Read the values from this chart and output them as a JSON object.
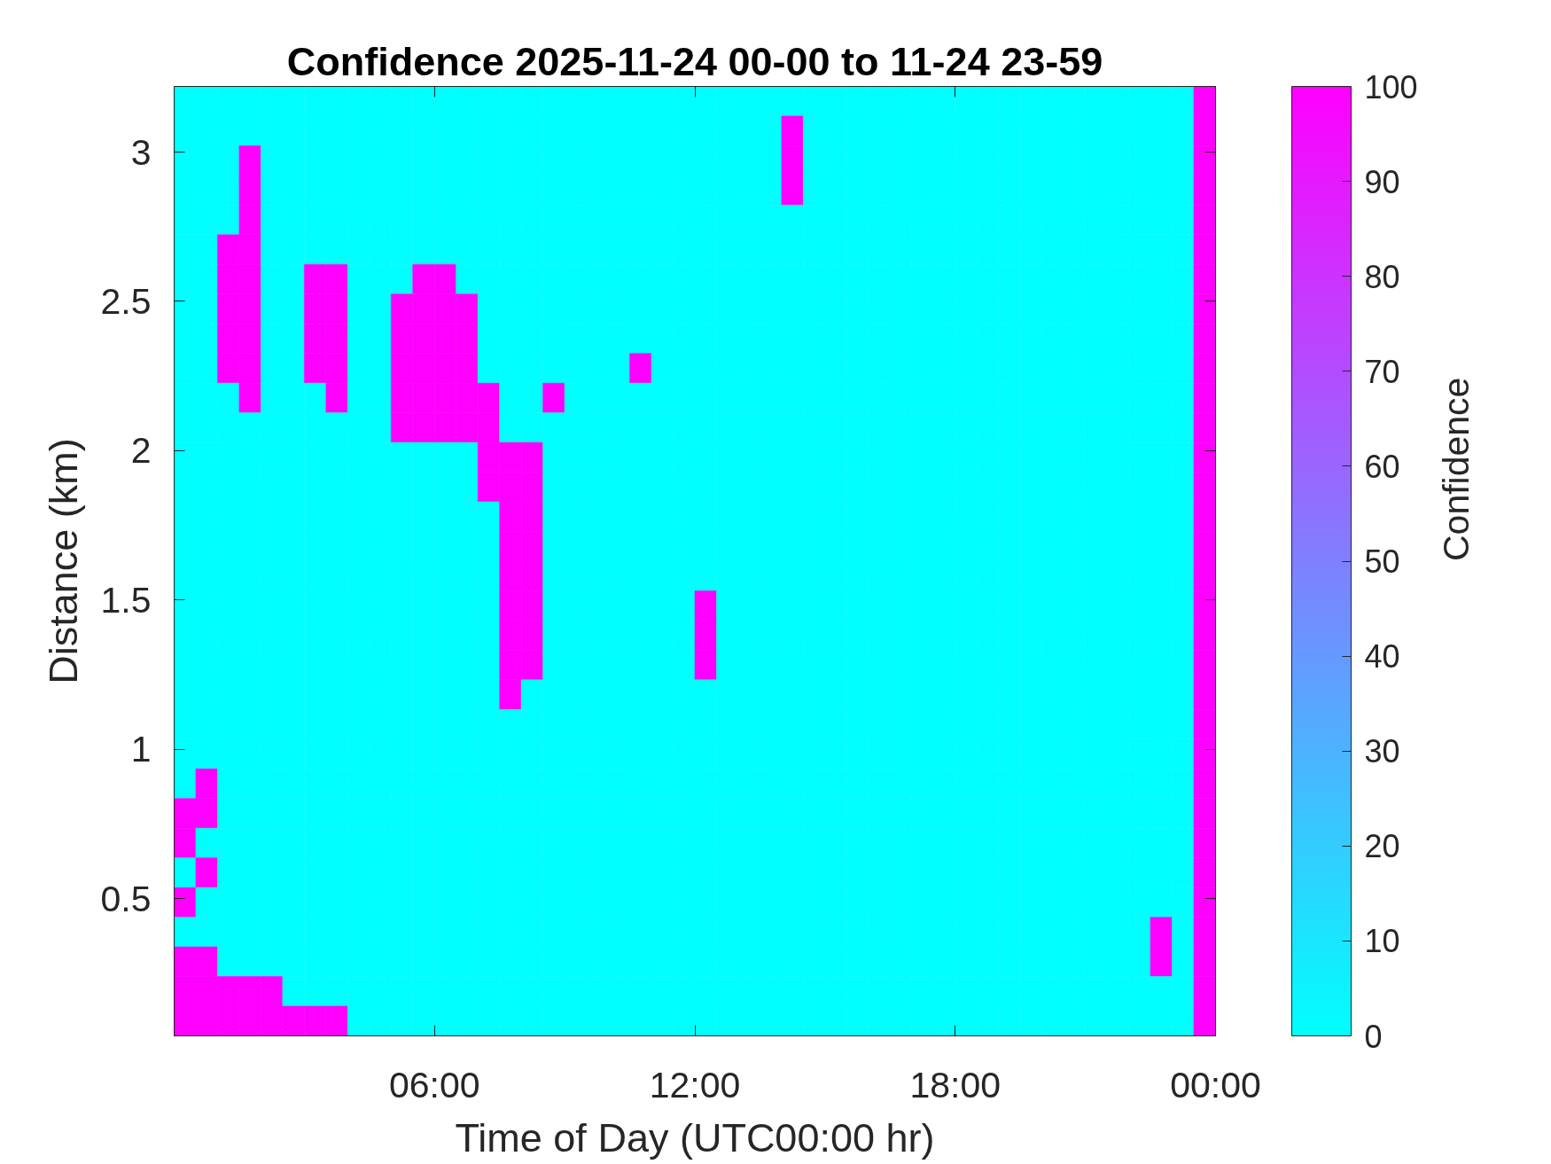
{
  "chart_data": {
    "type": "heatmap",
    "title": "Confidence 2025-11-24 00-00 to 11-24 23-59",
    "xlabel": "Time of Day (UTC00:00 hr)",
    "ylabel": "Distance (km)",
    "clabel": "Confidence",
    "x": [
      0.25,
      0.75,
      1.25,
      1.75,
      2.25,
      2.75,
      3.25,
      3.75,
      4.25,
      4.75,
      5.25,
      5.75,
      6.25,
      6.75,
      7.25,
      7.75,
      8.25,
      8.75,
      9.25,
      9.75,
      10.25,
      10.75,
      11.25,
      11.75,
      12.25,
      12.75,
      13.25,
      13.75,
      14.25,
      14.75,
      15.25,
      15.75,
      16.25,
      16.75,
      17.25,
      17.75,
      18.25,
      18.75,
      19.25,
      19.75,
      20.25,
      20.75,
      21.25,
      21.75,
      22.25,
      22.75,
      23.25,
      23.75
    ],
    "xlim": [
      0,
      24
    ],
    "xticks": [
      {
        "value": 6,
        "label": "06:00"
      },
      {
        "value": 12,
        "label": "12:00"
      },
      {
        "value": 18,
        "label": "18:00"
      },
      {
        "value": 24,
        "label": "00:00"
      }
    ],
    "ylim": [
      0.04,
      3.22
    ],
    "yticks": [
      0.5,
      1,
      1.5,
      2,
      2.5,
      3
    ],
    "clim": [
      0,
      100
    ],
    "cticks": [
      0,
      10,
      20,
      30,
      40,
      50,
      60,
      70,
      80,
      90,
      100
    ],
    "cells": [
      [
        0,
        0,
        0,
        0,
        0,
        0,
        0,
        0,
        0,
        0,
        0,
        0,
        0,
        0,
        0,
        0,
        0,
        0,
        0,
        0,
        0,
        0,
        0,
        0,
        0,
        0,
        0,
        0,
        0,
        0,
        0,
        0,
        0,
        0,
        0,
        0,
        0,
        0,
        0,
        0,
        0,
        0,
        0,
        0,
        0,
        0,
        0,
        100
      ],
      [
        0,
        0,
        0,
        0,
        0,
        0,
        0,
        0,
        0,
        0,
        0,
        0,
        0,
        0,
        0,
        0,
        0,
        0,
        0,
        0,
        0,
        0,
        0,
        0,
        0,
        0,
        0,
        0,
        100,
        0,
        0,
        0,
        0,
        0,
        0,
        0,
        0,
        0,
        0,
        0,
        0,
        0,
        0,
        0,
        0,
        0,
        0,
        100
      ],
      [
        0,
        0,
        0,
        100,
        0,
        0,
        0,
        0,
        0,
        0,
        0,
        0,
        0,
        0,
        0,
        0,
        0,
        0,
        0,
        0,
        0,
        0,
        0,
        0,
        0,
        0,
        0,
        0,
        100,
        0,
        0,
        0,
        0,
        0,
        0,
        0,
        0,
        0,
        0,
        0,
        0,
        0,
        0,
        0,
        0,
        0,
        0,
        100
      ],
      [
        0,
        0,
        0,
        100,
        0,
        0,
        0,
        0,
        0,
        0,
        0,
        0,
        0,
        0,
        0,
        0,
        0,
        0,
        0,
        0,
        0,
        0,
        0,
        0,
        0,
        0,
        0,
        0,
        100,
        0,
        0,
        0,
        0,
        0,
        0,
        0,
        0,
        0,
        0,
        0,
        0,
        0,
        0,
        0,
        0,
        0,
        0,
        100
      ],
      [
        0,
        0,
        0,
        100,
        0,
        0,
        0,
        0,
        0,
        0,
        0,
        0,
        0,
        0,
        0,
        0,
        0,
        0,
        0,
        0,
        0,
        0,
        0,
        0,
        0,
        0,
        0,
        0,
        0,
        0,
        0,
        0,
        0,
        0,
        0,
        0,
        0,
        0,
        0,
        0,
        0,
        0,
        0,
        0,
        0,
        0,
        0,
        100
      ],
      [
        0,
        0,
        100,
        100,
        0,
        0,
        0,
        0,
        0,
        0,
        0,
        0,
        0,
        0,
        0,
        0,
        0,
        0,
        0,
        0,
        0,
        0,
        0,
        0,
        0,
        0,
        0,
        0,
        0,
        0,
        0,
        0,
        0,
        0,
        0,
        0,
        0,
        0,
        0,
        0,
        0,
        0,
        0,
        0,
        0,
        0,
        0,
        100
      ],
      [
        0,
        0,
        100,
        100,
        0,
        0,
        100,
        100,
        0,
        0,
        0,
        100,
        100,
        0,
        0,
        0,
        0,
        0,
        0,
        0,
        0,
        0,
        0,
        0,
        0,
        0,
        0,
        0,
        0,
        0,
        0,
        0,
        0,
        0,
        0,
        0,
        0,
        0,
        0,
        0,
        0,
        0,
        0,
        0,
        0,
        0,
        0,
        100
      ],
      [
        0,
        0,
        100,
        100,
        0,
        0,
        100,
        100,
        0,
        0,
        100,
        100,
        100,
        100,
        0,
        0,
        0,
        0,
        0,
        0,
        0,
        0,
        0,
        0,
        0,
        0,
        0,
        0,
        0,
        0,
        0,
        0,
        0,
        0,
        0,
        0,
        0,
        0,
        0,
        0,
        0,
        0,
        0,
        0,
        0,
        0,
        0,
        100
      ],
      [
        0,
        0,
        100,
        100,
        0,
        0,
        100,
        100,
        0,
        0,
        100,
        100,
        100,
        100,
        0,
        0,
        0,
        0,
        0,
        0,
        0,
        0,
        0,
        0,
        0,
        0,
        0,
        0,
        0,
        0,
        0,
        0,
        0,
        0,
        0,
        0,
        0,
        0,
        0,
        0,
        0,
        0,
        0,
        0,
        0,
        0,
        0,
        100
      ],
      [
        0,
        0,
        100,
        100,
        0,
        0,
        100,
        100,
        0,
        0,
        100,
        100,
        100,
        100,
        0,
        0,
        0,
        0,
        0,
        0,
        0,
        100,
        0,
        0,
        0,
        0,
        0,
        0,
        0,
        0,
        0,
        0,
        0,
        0,
        0,
        0,
        0,
        0,
        0,
        0,
        0,
        0,
        0,
        0,
        0,
        0,
        0,
        100
      ],
      [
        0,
        0,
        0,
        100,
        0,
        0,
        0,
        100,
        0,
        0,
        100,
        100,
        100,
        100,
        100,
        0,
        0,
        100,
        0,
        0,
        0,
        0,
        0,
        0,
        0,
        0,
        0,
        0,
        0,
        0,
        0,
        0,
        0,
        0,
        0,
        0,
        0,
        0,
        0,
        0,
        0,
        0,
        0,
        0,
        0,
        0,
        0,
        100
      ],
      [
        0,
        0,
        0,
        0,
        0,
        0,
        0,
        0,
        0,
        0,
        100,
        100,
        100,
        100,
        100,
        0,
        0,
        0,
        0,
        0,
        0,
        0,
        0,
        0,
        0,
        0,
        0,
        0,
        0,
        0,
        0,
        0,
        0,
        0,
        0,
        0,
        0,
        0,
        0,
        0,
        0,
        0,
        0,
        0,
        0,
        0,
        0,
        100
      ],
      [
        0,
        0,
        0,
        0,
        0,
        0,
        0,
        0,
        0,
        0,
        0,
        0,
        0,
        0,
        100,
        100,
        100,
        0,
        0,
        0,
        0,
        0,
        0,
        0,
        0,
        0,
        0,
        0,
        0,
        0,
        0,
        0,
        0,
        0,
        0,
        0,
        0,
        0,
        0,
        0,
        0,
        0,
        0,
        0,
        0,
        0,
        0,
        100
      ],
      [
        0,
        0,
        0,
        0,
        0,
        0,
        0,
        0,
        0,
        0,
        0,
        0,
        0,
        0,
        100,
        100,
        100,
        0,
        0,
        0,
        0,
        0,
        0,
        0,
        0,
        0,
        0,
        0,
        0,
        0,
        0,
        0,
        0,
        0,
        0,
        0,
        0,
        0,
        0,
        0,
        0,
        0,
        0,
        0,
        0,
        0,
        0,
        100
      ],
      [
        0,
        0,
        0,
        0,
        0,
        0,
        0,
        0,
        0,
        0,
        0,
        0,
        0,
        0,
        0,
        100,
        100,
        0,
        0,
        0,
        0,
        0,
        0,
        0,
        0,
        0,
        0,
        0,
        0,
        0,
        0,
        0,
        0,
        0,
        0,
        0,
        0,
        0,
        0,
        0,
        0,
        0,
        0,
        0,
        0,
        0,
        0,
        100
      ],
      [
        0,
        0,
        0,
        0,
        0,
        0,
        0,
        0,
        0,
        0,
        0,
        0,
        0,
        0,
        0,
        100,
        100,
        0,
        0,
        0,
        0,
        0,
        0,
        0,
        0,
        0,
        0,
        0,
        0,
        0,
        0,
        0,
        0,
        0,
        0,
        0,
        0,
        0,
        0,
        0,
        0,
        0,
        0,
        0,
        0,
        0,
        0,
        100
      ],
      [
        0,
        0,
        0,
        0,
        0,
        0,
        0,
        0,
        0,
        0,
        0,
        0,
        0,
        0,
        0,
        100,
        100,
        0,
        0,
        0,
        0,
        0,
        0,
        0,
        0,
        0,
        0,
        0,
        0,
        0,
        0,
        0,
        0,
        0,
        0,
        0,
        0,
        0,
        0,
        0,
        0,
        0,
        0,
        0,
        0,
        0,
        0,
        100
      ],
      [
        0,
        0,
        0,
        0,
        0,
        0,
        0,
        0,
        0,
        0,
        0,
        0,
        0,
        0,
        0,
        100,
        100,
        0,
        0,
        0,
        0,
        0,
        0,
        0,
        100,
        0,
        0,
        0,
        0,
        0,
        0,
        0,
        0,
        0,
        0,
        0,
        0,
        0,
        0,
        0,
        0,
        0,
        0,
        0,
        0,
        0,
        0,
        100
      ],
      [
        0,
        0,
        0,
        0,
        0,
        0,
        0,
        0,
        0,
        0,
        0,
        0,
        0,
        0,
        0,
        100,
        100,
        0,
        0,
        0,
        0,
        0,
        0,
        0,
        100,
        0,
        0,
        0,
        0,
        0,
        0,
        0,
        0,
        0,
        0,
        0,
        0,
        0,
        0,
        0,
        0,
        0,
        0,
        0,
        0,
        0,
        0,
        100
      ],
      [
        0,
        0,
        0,
        0,
        0,
        0,
        0,
        0,
        0,
        0,
        0,
        0,
        0,
        0,
        0,
        100,
        100,
        0,
        0,
        0,
        0,
        0,
        0,
        0,
        100,
        0,
        0,
        0,
        0,
        0,
        0,
        0,
        0,
        0,
        0,
        0,
        0,
        0,
        0,
        0,
        0,
        0,
        0,
        0,
        0,
        0,
        0,
        100
      ],
      [
        0,
        0,
        0,
        0,
        0,
        0,
        0,
        0,
        0,
        0,
        0,
        0,
        0,
        0,
        0,
        100,
        0,
        0,
        0,
        0,
        0,
        0,
        0,
        0,
        0,
        0,
        0,
        0,
        0,
        0,
        0,
        0,
        0,
        0,
        0,
        0,
        0,
        0,
        0,
        0,
        0,
        0,
        0,
        0,
        0,
        0,
        0,
        100
      ],
      [
        0,
        0,
        0,
        0,
        0,
        0,
        0,
        0,
        0,
        0,
        0,
        0,
        0,
        0,
        0,
        0,
        0,
        0,
        0,
        0,
        0,
        0,
        0,
        0,
        0,
        0,
        0,
        0,
        0,
        0,
        0,
        0,
        0,
        0,
        0,
        0,
        0,
        0,
        0,
        0,
        0,
        0,
        0,
        0,
        0,
        0,
        0,
        100
      ],
      [
        0,
        0,
        0,
        0,
        0,
        0,
        0,
        0,
        0,
        0,
        0,
        0,
        0,
        0,
        0,
        0,
        0,
        0,
        0,
        0,
        0,
        0,
        0,
        0,
        0,
        0,
        0,
        0,
        0,
        0,
        0,
        0,
        0,
        0,
        0,
        0,
        0,
        0,
        0,
        0,
        0,
        0,
        0,
        0,
        0,
        0,
        0,
        100
      ],
      [
        0,
        100,
        0,
        0,
        0,
        0,
        0,
        0,
        0,
        0,
        0,
        0,
        0,
        0,
        0,
        0,
        0,
        0,
        0,
        0,
        0,
        0,
        0,
        0,
        0,
        0,
        0,
        0,
        0,
        0,
        0,
        0,
        0,
        0,
        0,
        0,
        0,
        0,
        0,
        0,
        0,
        0,
        0,
        0,
        0,
        0,
        0,
        100
      ],
      [
        100,
        100,
        0,
        0,
        0,
        0,
        0,
        0,
        0,
        0,
        0,
        0,
        0,
        0,
        0,
        0,
        0,
        0,
        0,
        0,
        0,
        0,
        0,
        0,
        0,
        0,
        0,
        0,
        0,
        0,
        0,
        0,
        0,
        0,
        0,
        0,
        0,
        0,
        0,
        0,
        0,
        0,
        0,
        0,
        0,
        0,
        0,
        100
      ],
      [
        100,
        0,
        0,
        0,
        0,
        0,
        0,
        0,
        0,
        0,
        0,
        0,
        0,
        0,
        0,
        0,
        0,
        0,
        0,
        0,
        0,
        0,
        0,
        0,
        0,
        0,
        0,
        0,
        0,
        0,
        0,
        0,
        0,
        0,
        0,
        0,
        0,
        0,
        0,
        0,
        0,
        0,
        0,
        0,
        0,
        0,
        0,
        100
      ],
      [
        0,
        100,
        0,
        0,
        0,
        0,
        0,
        0,
        0,
        0,
        0,
        0,
        0,
        0,
        0,
        0,
        0,
        0,
        0,
        0,
        0,
        0,
        0,
        0,
        0,
        0,
        0,
        0,
        0,
        0,
        0,
        0,
        0,
        0,
        0,
        0,
        0,
        0,
        0,
        0,
        0,
        0,
        0,
        0,
        0,
        0,
        0,
        100
      ],
      [
        100,
        0,
        0,
        0,
        0,
        0,
        0,
        0,
        0,
        0,
        0,
        0,
        0,
        0,
        0,
        0,
        0,
        0,
        0,
        0,
        0,
        0,
        0,
        0,
        0,
        0,
        0,
        0,
        0,
        0,
        0,
        0,
        0,
        0,
        0,
        0,
        0,
        0,
        0,
        0,
        0,
        0,
        0,
        0,
        0,
        0,
        0,
        100
      ],
      [
        0,
        0,
        0,
        0,
        0,
        0,
        0,
        0,
        0,
        0,
        0,
        0,
        0,
        0,
        0,
        0,
        0,
        0,
        0,
        0,
        0,
        0,
        0,
        0,
        0,
        0,
        0,
        0,
        0,
        0,
        0,
        0,
        0,
        0,
        0,
        0,
        0,
        0,
        0,
        0,
        0,
        0,
        0,
        0,
        0,
        100,
        0,
        100
      ],
      [
        100,
        100,
        0,
        0,
        0,
        0,
        0,
        0,
        0,
        0,
        0,
        0,
        0,
        0,
        0,
        0,
        0,
        0,
        0,
        0,
        0,
        0,
        0,
        0,
        0,
        0,
        0,
        0,
        0,
        0,
        0,
        0,
        0,
        0,
        0,
        0,
        0,
        0,
        0,
        0,
        0,
        0,
        0,
        0,
        0,
        100,
        0,
        100
      ],
      [
        100,
        100,
        100,
        100,
        100,
        0,
        0,
        0,
        0,
        0,
        0,
        0,
        0,
        0,
        0,
        0,
        0,
        0,
        0,
        0,
        0,
        0,
        0,
        0,
        0,
        0,
        0,
        0,
        0,
        0,
        0,
        0,
        0,
        0,
        0,
        0,
        0,
        0,
        0,
        0,
        0,
        0,
        0,
        0,
        0,
        0,
        0,
        100
      ],
      [
        100,
        100,
        100,
        100,
        100,
        100,
        100,
        100,
        0,
        0,
        0,
        0,
        0,
        0,
        0,
        0,
        0,
        0,
        0,
        0,
        0,
        0,
        0,
        0,
        0,
        0,
        0,
        0,
        0,
        0,
        0,
        0,
        0,
        0,
        0,
        0,
        0,
        0,
        0,
        0,
        0,
        0,
        0,
        0,
        0,
        0,
        0,
        100
      ]
    ]
  }
}
